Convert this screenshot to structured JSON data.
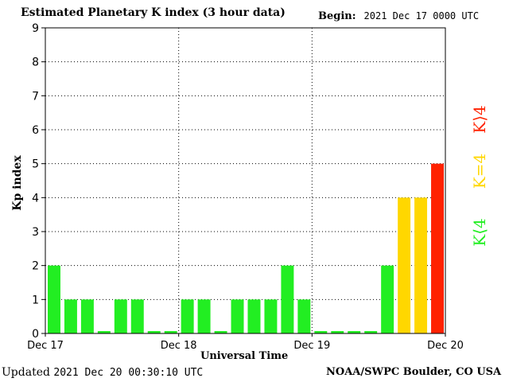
{
  "header": {
    "title": "Estimated Planetary K index (3 hour data)",
    "begin_label": "Begin:",
    "begin_value": "2021 Dec 17 0000 UTC"
  },
  "footer": {
    "updated_label": "Updated",
    "updated_value": "2021 Dec 20 00:30:10 UTC",
    "credit": "NOAA/SWPC Boulder, CO USA"
  },
  "legend": {
    "red": "K⟩4",
    "yellow": "K=4",
    "green": "K⟨4"
  },
  "colors": {
    "green": "#22ee22",
    "yellow": "#ffd700",
    "red": "#ff2200"
  },
  "chart_data": {
    "type": "bar",
    "ylabel": "Kp index",
    "xlabel": "Universal Time",
    "ylim": [
      0,
      9
    ],
    "y_ticks": [
      "0",
      "1",
      "2",
      "3",
      "4",
      "5",
      "6",
      "7",
      "8",
      "9"
    ],
    "x_tick_labels": [
      "Dec 17",
      "Dec 18",
      "Dec 19",
      "Dec 20"
    ],
    "grid": "dotted",
    "values": [
      2,
      1,
      1,
      0,
      1,
      1,
      0,
      0,
      1,
      1,
      0,
      1,
      1,
      1,
      2,
      1,
      0,
      0,
      0,
      0,
      2,
      4,
      4,
      5
    ]
  }
}
